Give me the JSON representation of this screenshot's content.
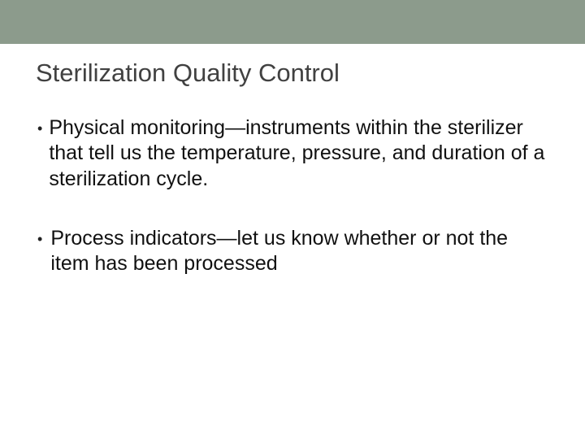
{
  "slide": {
    "title": "Sterilization Quality Control",
    "bullets": [
      {
        "text": "Physical monitoring—instruments within the sterilizer that tell us the temperature, pressure, and duration of a sterilization cycle."
      },
      {
        "text": " Process indicators—let us know whether or not the item has been processed"
      }
    ],
    "colors": {
      "top_bar": "#8c9b8c",
      "background": "#ffffff",
      "title_color": "#414141",
      "body_color": "#111111"
    },
    "typography": {
      "title_fontsize": 31,
      "body_fontsize": 25,
      "font_family": "Arial"
    }
  }
}
